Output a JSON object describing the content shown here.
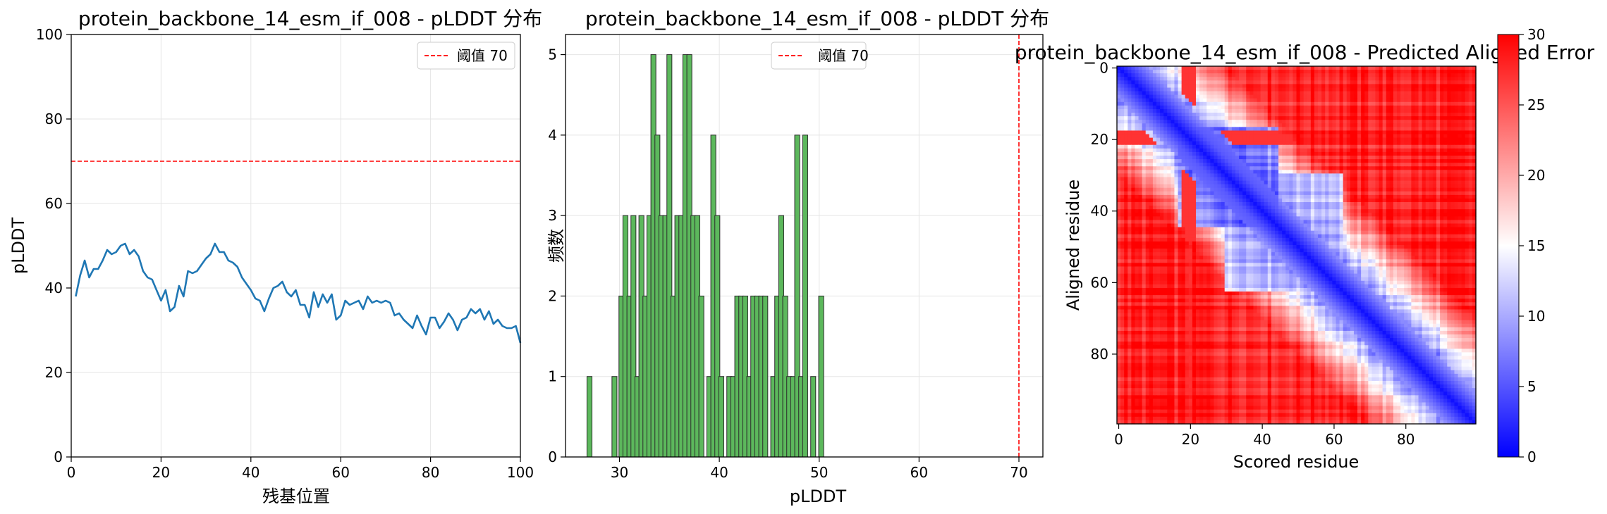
{
  "chart_data": [
    {
      "type": "line",
      "title": "protein_backbone_14_esm_if_008 - pLDDT 分布",
      "xlabel": "残基位置",
      "ylabel": "pLDDT",
      "xlim": [
        0,
        100
      ],
      "ylim": [
        0,
        100
      ],
      "xticks": [
        "0",
        "20",
        "40",
        "60",
        "80",
        "100"
      ],
      "yticks": [
        "0",
        "20",
        "40",
        "60",
        "80",
        "100"
      ],
      "grid": true,
      "legend": {
        "placement": "top-right",
        "entries": [
          "阈值 70"
        ]
      },
      "threshold": {
        "value": 70,
        "label": "阈值 70",
        "color": "#ff0000",
        "style": "dashed"
      },
      "series": [
        {
          "color": "#1f77b4",
          "x": [
            1,
            2,
            3,
            4,
            5,
            6,
            7,
            8,
            9,
            10,
            11,
            12,
            13,
            14,
            15,
            16,
            17,
            18,
            19,
            20,
            21,
            22,
            23,
            24,
            25,
            26,
            27,
            28,
            29,
            30,
            31,
            32,
            33,
            34,
            35,
            36,
            37,
            38,
            39,
            40,
            41,
            42,
            43,
            44,
            45,
            46,
            47,
            48,
            49,
            50,
            51,
            52,
            53,
            54,
            55,
            56,
            57,
            58,
            59,
            60,
            61,
            62,
            63,
            64,
            65,
            66,
            67,
            68,
            69,
            70,
            71,
            72,
            73,
            74,
            75,
            76,
            77,
            78,
            79,
            80,
            81,
            82,
            83,
            84,
            85,
            86,
            87,
            88,
            89,
            90,
            91,
            92,
            93,
            94,
            95,
            96,
            97,
            98,
            99,
            100
          ],
          "values": [
            38,
            43,
            46.5,
            42.5,
            44.5,
            44.5,
            46.5,
            49,
            48,
            48.5,
            50,
            50.5,
            48,
            49,
            47.5,
            44,
            42.5,
            42,
            39.5,
            37,
            39.5,
            34.5,
            35.5,
            40.5,
            38,
            44,
            43.5,
            44,
            45.5,
            47,
            48,
            50.5,
            48.5,
            48.5,
            46.5,
            46,
            45,
            42.5,
            41,
            39.5,
            37.5,
            37,
            34.5,
            37.5,
            40,
            40.5,
            41.5,
            39,
            38,
            39.5,
            36,
            36,
            33,
            39,
            35.5,
            38.5,
            36.5,
            38.5,
            32.5,
            33.5,
            37,
            36,
            36.5,
            37,
            35,
            38,
            36.5,
            37,
            36.5,
            37,
            36.5,
            33.5,
            34,
            32.5,
            31.5,
            30.5,
            33.5,
            31,
            29,
            33,
            33,
            30.5,
            32,
            34,
            32.5,
            30,
            32.5,
            33,
            35,
            34,
            35,
            32.5,
            34.5,
            31.5,
            32.5,
            31,
            30.5,
            30.5,
            31,
            27
          ]
        }
      ]
    },
    {
      "type": "bar",
      "title": "protein_backbone_14_esm_if_008 - pLDDT 分布",
      "xlabel": "pLDDT",
      "ylabel": "频数",
      "xlim": [
        24.6,
        72.4
      ],
      "ylim": [
        0,
        5.25
      ],
      "xticks": [
        "30",
        "40",
        "50",
        "60",
        "70"
      ],
      "yticks": [
        "0",
        "1",
        "2",
        "3",
        "4",
        "5"
      ],
      "grid": true,
      "bar_color": "#5cb85c",
      "bin_width": 0.5,
      "legend": {
        "placement": "top-center",
        "entries": [
          "阈值 70"
        ]
      },
      "threshold": {
        "value": 70,
        "label": "阈值 70",
        "color": "#ff0000",
        "style": "dashed"
      },
      "bars": [
        {
          "x": 27,
          "count": 1
        },
        {
          "x": 29.5,
          "count": 1
        },
        {
          "x": 30.2,
          "count": 2
        },
        {
          "x": 30.6,
          "count": 3
        },
        {
          "x": 31,
          "count": 2
        },
        {
          "x": 31.4,
          "count": 3
        },
        {
          "x": 31.8,
          "count": 1
        },
        {
          "x": 32.2,
          "count": 3
        },
        {
          "x": 32.6,
          "count": 2
        },
        {
          "x": 33,
          "count": 3
        },
        {
          "x": 33.4,
          "count": 5
        },
        {
          "x": 33.8,
          "count": 4
        },
        {
          "x": 34.2,
          "count": 3
        },
        {
          "x": 34.6,
          "count": 3
        },
        {
          "x": 35,
          "count": 5
        },
        {
          "x": 35.4,
          "count": 2
        },
        {
          "x": 35.8,
          "count": 3
        },
        {
          "x": 36.2,
          "count": 3
        },
        {
          "x": 36.6,
          "count": 5
        },
        {
          "x": 37,
          "count": 5
        },
        {
          "x": 37.4,
          "count": 3
        },
        {
          "x": 37.8,
          "count": 3
        },
        {
          "x": 38.2,
          "count": 2
        },
        {
          "x": 39,
          "count": 1
        },
        {
          "x": 39.4,
          "count": 4
        },
        {
          "x": 39.8,
          "count": 3
        },
        {
          "x": 40.2,
          "count": 1
        },
        {
          "x": 41,
          "count": 1
        },
        {
          "x": 41.4,
          "count": 1
        },
        {
          "x": 41.8,
          "count": 2
        },
        {
          "x": 42.2,
          "count": 2
        },
        {
          "x": 42.6,
          "count": 2
        },
        {
          "x": 43,
          "count": 1
        },
        {
          "x": 43.4,
          "count": 2
        },
        {
          "x": 43.8,
          "count": 2
        },
        {
          "x": 44.2,
          "count": 2
        },
        {
          "x": 44.6,
          "count": 2
        },
        {
          "x": 45.4,
          "count": 1
        },
        {
          "x": 45.8,
          "count": 2
        },
        {
          "x": 46.2,
          "count": 3
        },
        {
          "x": 46.6,
          "count": 2
        },
        {
          "x": 47,
          "count": 1
        },
        {
          "x": 47.4,
          "count": 1
        },
        {
          "x": 47.8,
          "count": 4
        },
        {
          "x": 48.2,
          "count": 1
        },
        {
          "x": 48.6,
          "count": 4
        },
        {
          "x": 49.4,
          "count": 1
        },
        {
          "x": 50.2,
          "count": 2
        }
      ]
    },
    {
      "type": "heatmap",
      "title": "protein_backbone_14_esm_if_008 - Predicted Aligned Error",
      "xlabel": "Scored residue",
      "ylabel": "Aligned residue",
      "xticks": [
        "0",
        "20",
        "40",
        "60",
        "80"
      ],
      "yticks": [
        "0",
        "20",
        "40",
        "60",
        "80"
      ],
      "size": 100,
      "colormap": "bwr",
      "colorbar": {
        "min": 0,
        "max": 30,
        "ticks": [
          "0",
          "5",
          "10",
          "15",
          "20",
          "25",
          "30"
        ]
      },
      "description": "Low error (blue) along the diagonal and in a block around residues 20-45, high error (red) elsewhere"
    }
  ]
}
